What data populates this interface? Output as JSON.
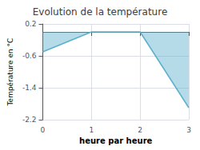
{
  "chart_data": {
    "type": "line",
    "title": "Evolution de la température",
    "xlabel": "heure par heure",
    "ylabel": "Température en °C",
    "x": [
      0,
      1,
      2,
      3
    ],
    "values": [
      -0.5,
      0.0,
      0.0,
      -1.9
    ],
    "color": "#5ab0cc",
    "xlim": [
      0,
      3
    ],
    "xticks": [
      0,
      1,
      2,
      3
    ],
    "ylim": [
      -2.2,
      0.2
    ],
    "yticks": [
      0.2,
      -0.6,
      -1.4,
      -2.2
    ],
    "grid": true
  }
}
